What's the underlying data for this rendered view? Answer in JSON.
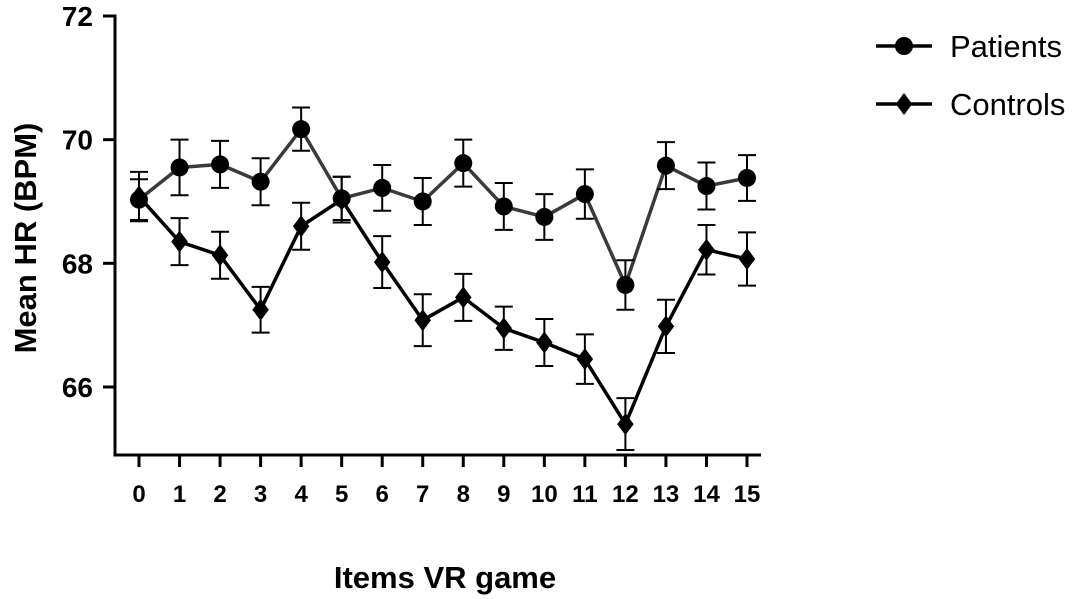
{
  "chart_data": {
    "type": "line",
    "title": "",
    "xlabel": "Items VR game",
    "ylabel": "Mean HR (BPM)",
    "x": [
      0,
      1,
      2,
      3,
      4,
      5,
      6,
      7,
      8,
      9,
      10,
      11,
      12,
      13,
      14,
      15
    ],
    "xticks": [
      "0",
      "1",
      "2",
      "3",
      "4",
      "5",
      "6",
      "7",
      "8",
      "9",
      "10",
      "11",
      "12",
      "13",
      "14",
      "15"
    ],
    "yticks": [
      "66",
      "68",
      "70",
      "72"
    ],
    "ylim": [
      64.9,
      72
    ],
    "grid": false,
    "legend": "top-right",
    "series": [
      {
        "name": "Patients",
        "marker": "circle",
        "color": "#3a3a3a",
        "values": [
          69.03,
          69.55,
          69.6,
          69.32,
          70.17,
          69.05,
          69.22,
          69.0,
          69.62,
          68.92,
          68.75,
          69.12,
          67.65,
          69.58,
          69.25,
          69.38
        ],
        "errors": [
          0.33,
          0.45,
          0.38,
          0.38,
          0.35,
          0.35,
          0.37,
          0.38,
          0.38,
          0.38,
          0.37,
          0.4,
          0.4,
          0.38,
          0.38,
          0.37
        ]
      },
      {
        "name": "Controls",
        "marker": "diamond",
        "color": "#000000",
        "values": [
          69.08,
          68.35,
          68.13,
          67.25,
          68.6,
          69.03,
          68.02,
          67.08,
          67.45,
          66.95,
          66.72,
          66.45,
          65.4,
          66.98,
          68.22,
          68.07
        ],
        "errors": [
          0.4,
          0.38,
          0.38,
          0.37,
          0.38,
          0.37,
          0.42,
          0.42,
          0.38,
          0.35,
          0.38,
          0.4,
          0.42,
          0.43,
          0.4,
          0.43
        ]
      }
    ]
  }
}
